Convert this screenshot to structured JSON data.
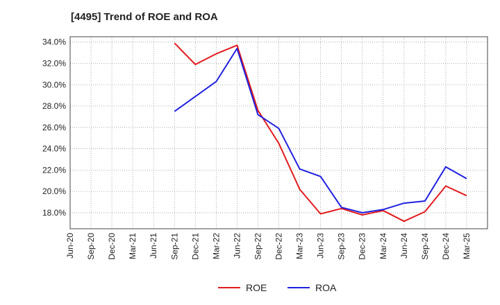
{
  "chart_data": {
    "type": "line",
    "title": "[4495]  Trend of ROE and ROA",
    "x": [
      "Jun-20",
      "Sep-20",
      "Dec-20",
      "Mar-21",
      "Jun-21",
      "Sep-21",
      "Dec-21",
      "Mar-22",
      "Jun-22",
      "Sep-22",
      "Dec-22",
      "Mar-23",
      "Jun-23",
      "Sep-23",
      "Dec-23",
      "Mar-24",
      "Jun-24",
      "Sep-24",
      "Dec-24",
      "Mar-25"
    ],
    "y_ticks": [
      "18.0%",
      "20.0%",
      "22.0%",
      "24.0%",
      "26.0%",
      "28.0%",
      "30.0%",
      "32.0%",
      "34.0%"
    ],
    "ylim": [
      16.5,
      34.5
    ],
    "grid": true,
    "legend_position": "bottom",
    "series": [
      {
        "name": "ROE",
        "color": "#e31a1c",
        "values": [
          null,
          null,
          null,
          null,
          null,
          33.9,
          31.9,
          32.9,
          33.7,
          27.6,
          24.5,
          20.2,
          17.9,
          18.4,
          17.8,
          18.2,
          17.2,
          18.1,
          20.5,
          19.6
        ]
      },
      {
        "name": "ROA",
        "color": "#1f1fe0",
        "values": [
          null,
          null,
          null,
          null,
          null,
          27.5,
          28.9,
          30.3,
          33.4,
          27.2,
          25.9,
          22.1,
          21.4,
          18.5,
          18.0,
          18.3,
          18.9,
          19.1,
          22.3,
          21.2
        ]
      }
    ]
  }
}
